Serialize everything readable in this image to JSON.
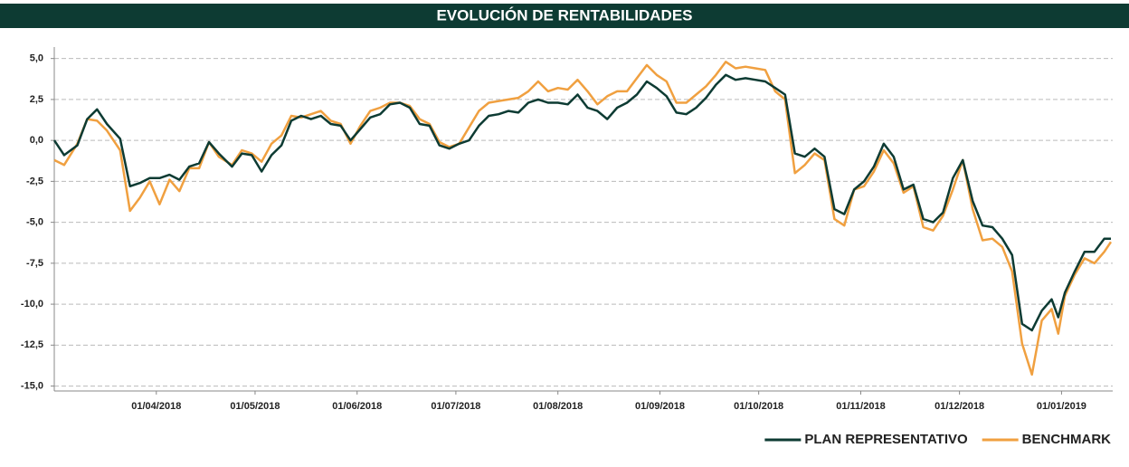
{
  "chart_data": {
    "type": "line",
    "title": "EVOLUCIÓN DE RENTABILIDADES",
    "x": [
      "2018-03-01",
      "2018-03-04",
      "2018-03-08",
      "2018-03-11",
      "2018-03-14",
      "2018-03-17",
      "2018-03-21",
      "2018-03-24",
      "2018-03-27",
      "2018-03-30",
      "2018-04-02",
      "2018-04-05",
      "2018-04-08",
      "2018-04-11",
      "2018-04-14",
      "2018-04-17",
      "2018-04-20",
      "2018-04-24",
      "2018-04-27",
      "2018-04-30",
      "2018-05-03",
      "2018-05-06",
      "2018-05-09",
      "2018-05-12",
      "2018-05-15",
      "2018-05-18",
      "2018-05-21",
      "2018-05-24",
      "2018-05-27",
      "2018-05-30",
      "2018-06-02",
      "2018-06-05",
      "2018-06-08",
      "2018-06-11",
      "2018-06-14",
      "2018-06-17",
      "2018-06-20",
      "2018-06-23",
      "2018-06-26",
      "2018-06-29",
      "2018-07-02",
      "2018-07-05",
      "2018-07-08",
      "2018-07-11",
      "2018-07-14",
      "2018-07-17",
      "2018-07-20",
      "2018-07-23",
      "2018-07-26",
      "2018-07-29",
      "2018-08-01",
      "2018-08-04",
      "2018-08-07",
      "2018-08-10",
      "2018-08-13",
      "2018-08-16",
      "2018-08-19",
      "2018-08-22",
      "2018-08-25",
      "2018-08-28",
      "2018-08-31",
      "2018-09-03",
      "2018-09-06",
      "2018-09-09",
      "2018-09-12",
      "2018-09-15",
      "2018-09-18",
      "2018-09-21",
      "2018-09-24",
      "2018-09-27",
      "2018-09-30",
      "2018-10-03",
      "2018-10-06",
      "2018-10-09",
      "2018-10-12",
      "2018-10-15",
      "2018-10-18",
      "2018-10-21",
      "2018-10-24",
      "2018-10-27",
      "2018-10-30",
      "2018-11-02",
      "2018-11-05",
      "2018-11-08",
      "2018-11-11",
      "2018-11-14",
      "2018-11-17",
      "2018-11-20",
      "2018-11-23",
      "2018-11-26",
      "2018-11-29",
      "2018-12-02",
      "2018-12-05",
      "2018-12-08",
      "2018-12-11",
      "2018-12-14",
      "2018-12-17",
      "2018-12-20",
      "2018-12-23",
      "2018-12-26",
      "2018-12-29",
      "2018-12-31",
      "2019-01-02",
      "2019-01-05",
      "2019-01-08",
      "2019-01-11",
      "2019-01-14",
      "2019-01-16"
    ],
    "series": [
      {
        "name": "PLAN REPRESENTATIVO",
        "color": "#0d3b33",
        "values": [
          0.0,
          -0.9,
          -0.3,
          1.3,
          1.9,
          1.0,
          0.1,
          -2.8,
          -2.6,
          -2.3,
          -2.3,
          -2.1,
          -2.4,
          -1.6,
          -1.4,
          -0.1,
          -0.8,
          -1.6,
          -0.8,
          -0.9,
          -1.9,
          -0.9,
          -0.3,
          1.2,
          1.5,
          1.3,
          1.5,
          1.0,
          0.9,
          0.0,
          0.7,
          1.4,
          1.6,
          2.2,
          2.3,
          2.0,
          1.0,
          0.9,
          -0.3,
          -0.5,
          -0.2,
          0.0,
          0.9,
          1.5,
          1.6,
          1.8,
          1.7,
          2.3,
          2.5,
          2.3,
          2.3,
          2.2,
          2.8,
          2.0,
          1.8,
          1.3,
          2.0,
          2.3,
          2.8,
          3.6,
          3.2,
          2.7,
          1.7,
          1.6,
          2.0,
          2.6,
          3.4,
          4.0,
          3.7,
          3.8,
          3.7,
          3.6,
          3.2,
          2.8,
          -0.8,
          -1.0,
          -0.5,
          -1.0,
          -4.2,
          -4.5,
          -3.0,
          -2.5,
          -1.6,
          -0.2,
          -1.0,
          -3.0,
          -2.7,
          -4.8,
          -5.0,
          -4.4,
          -2.3,
          -1.2,
          -3.7,
          -5.2,
          -5.3,
          -6.0,
          -7.0,
          -11.2,
          -11.6,
          -10.4,
          -9.7,
          -10.8,
          -9.3,
          -8.0,
          -6.8,
          -6.8,
          -6.0,
          -6.0
        ]
      },
      {
        "name": "BENCHMARK",
        "color": "#f0a040",
        "values": [
          -1.2,
          -1.5,
          -0.2,
          1.3,
          1.2,
          0.6,
          -0.6,
          -4.3,
          -3.5,
          -2.5,
          -3.9,
          -2.4,
          -3.1,
          -1.7,
          -1.7,
          -0.1,
          -1.0,
          -1.5,
          -0.6,
          -0.8,
          -1.3,
          -0.2,
          0.3,
          1.5,
          1.4,
          1.6,
          1.8,
          1.2,
          1.0,
          -0.2,
          0.9,
          1.8,
          2.0,
          2.3,
          2.3,
          2.1,
          1.3,
          1.0,
          -0.1,
          -0.4,
          -0.2,
          0.8,
          1.8,
          2.3,
          2.4,
          2.5,
          2.6,
          3.0,
          3.6,
          3.0,
          3.2,
          3.1,
          3.7,
          3.0,
          2.2,
          2.7,
          3.0,
          3.0,
          3.8,
          4.6,
          4.0,
          3.6,
          2.3,
          2.3,
          2.8,
          3.3,
          4.0,
          4.8,
          4.4,
          4.5,
          4.4,
          4.3,
          3.0,
          2.5,
          -2.0,
          -1.5,
          -0.8,
          -1.2,
          -4.8,
          -5.2,
          -3.0,
          -2.8,
          -1.9,
          -0.6,
          -1.4,
          -3.2,
          -2.8,
          -5.3,
          -5.5,
          -4.6,
          -3.0,
          -1.2,
          -4.2,
          -6.1,
          -6.0,
          -6.5,
          -8.0,
          -12.4,
          -14.3,
          -11.0,
          -10.3,
          -11.8,
          -9.5,
          -8.2,
          -7.2,
          -7.5,
          -6.8,
          -6.2
        ]
      }
    ],
    "xlim": [
      "2018-03-01",
      "2019-01-16"
    ],
    "xticks": [
      {
        "value": "2018-04-01",
        "label": "01/04/2018"
      },
      {
        "value": "2018-05-01",
        "label": "01/05/2018"
      },
      {
        "value": "2018-06-01",
        "label": "01/06/2018"
      },
      {
        "value": "2018-07-01",
        "label": "01/07/2018"
      },
      {
        "value": "2018-08-01",
        "label": "01/08/2018"
      },
      {
        "value": "2018-09-01",
        "label": "01/09/2018"
      },
      {
        "value": "2018-10-01",
        "label": "01/10/2018"
      },
      {
        "value": "2018-11-01",
        "label": "01/11/2018"
      },
      {
        "value": "2018-12-01",
        "label": "01/12/2018"
      },
      {
        "value": "2019-01-01",
        "label": "01/01/2019"
      }
    ],
    "ylim": [
      -15.3,
      5.7
    ],
    "yticks": [
      {
        "value": 5,
        "label": "5,0"
      },
      {
        "value": 2.5,
        "label": "2,5"
      },
      {
        "value": 0,
        "label": "0,0"
      },
      {
        "value": -2.5,
        "label": "-2,5"
      },
      {
        "value": -5,
        "label": "-5,0"
      },
      {
        "value": -7.5,
        "label": "-7,5"
      },
      {
        "value": -10,
        "label": "-10,0"
      },
      {
        "value": -12.5,
        "label": "-12,5"
      },
      {
        "value": -15,
        "label": "-15,0"
      }
    ],
    "grid": true,
    "legend": "bottom-right"
  }
}
